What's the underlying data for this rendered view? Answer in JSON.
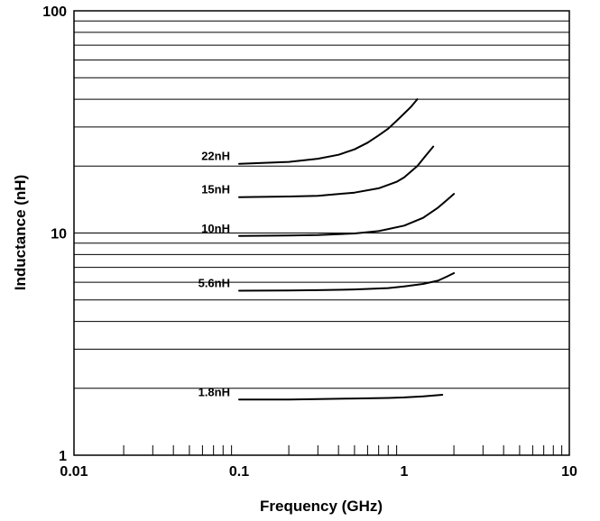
{
  "chart_data": {
    "type": "line",
    "xlabel": "Frequency (GHz)",
    "ylabel": "Inductance (nH)",
    "xscale": "log",
    "yscale": "log",
    "xlim": [
      0.01,
      10
    ],
    "ylim": [
      1,
      100
    ],
    "xticks": [
      {
        "value": 0.01,
        "label": "0.01"
      },
      {
        "value": 0.1,
        "label": "0.1"
      },
      {
        "value": 1,
        "label": "1"
      },
      {
        "value": 10,
        "label": "10"
      }
    ],
    "yticks": [
      {
        "value": 1,
        "label": "1"
      },
      {
        "value": 10,
        "label": "10"
      },
      {
        "value": 100,
        "label": "100"
      }
    ],
    "grid": "horizontal",
    "series": [
      {
        "name": "22nH",
        "x": [
          0.1,
          0.2,
          0.3,
          0.4,
          0.5,
          0.6,
          0.7,
          0.8,
          0.9,
          1.0,
          1.1,
          1.2
        ],
        "y": [
          20.5,
          20.9,
          21.6,
          22.5,
          23.8,
          25.5,
          27.5,
          29.5,
          32.0,
          34.5,
          37.0,
          40.0
        ]
      },
      {
        "name": "15nH",
        "x": [
          0.1,
          0.2,
          0.3,
          0.5,
          0.7,
          0.9,
          1.0,
          1.2,
          1.35,
          1.5
        ],
        "y": [
          14.5,
          14.6,
          14.7,
          15.2,
          15.9,
          17.0,
          17.8,
          20.0,
          22.3,
          24.5
        ]
      },
      {
        "name": "10nH",
        "x": [
          0.1,
          0.2,
          0.3,
          0.5,
          0.7,
          1.0,
          1.3,
          1.6,
          1.8,
          2.0
        ],
        "y": [
          9.7,
          9.75,
          9.8,
          9.95,
          10.2,
          10.8,
          11.7,
          13.0,
          14.0,
          15.0
        ]
      },
      {
        "name": "5.6nH",
        "x": [
          0.1,
          0.2,
          0.3,
          0.5,
          0.8,
          1.0,
          1.3,
          1.6,
          1.8,
          2.0
        ],
        "y": [
          5.5,
          5.51,
          5.53,
          5.57,
          5.65,
          5.75,
          5.9,
          6.1,
          6.35,
          6.6
        ]
      },
      {
        "name": "1.8nH",
        "x": [
          0.1,
          0.2,
          0.3,
          0.5,
          0.8,
          1.0,
          1.3,
          1.7
        ],
        "y": [
          1.78,
          1.78,
          1.79,
          1.8,
          1.81,
          1.82,
          1.84,
          1.87
        ]
      }
    ]
  }
}
